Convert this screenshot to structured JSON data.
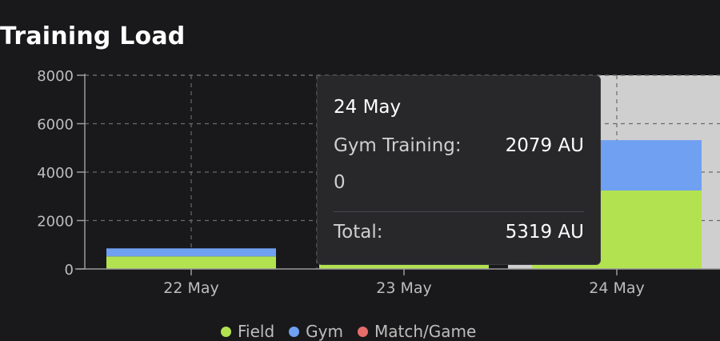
{
  "title": "Training Load",
  "chart_data": {
    "type": "bar",
    "stacked": true,
    "categories": [
      "22 May",
      "23 May",
      "24 May"
    ],
    "series": [
      {
        "name": "Field",
        "color": "#b3e250",
        "values": [
          520,
          250,
          3240
        ]
      },
      {
        "name": "Gym",
        "color": "#6fa0f2",
        "values": [
          330,
          0,
          2079
        ]
      },
      {
        "name": "Match/Game",
        "color": "#e56e6a",
        "values": [
          0,
          0,
          0
        ]
      }
    ],
    "y_ticks": [
      "0",
      "2000",
      "4000",
      "6000",
      "8000"
    ],
    "ylim": [
      0,
      8000
    ],
    "grid": true,
    "legend": "bottom",
    "highlighted_category": "24 May"
  },
  "tooltip": {
    "date": "24 May",
    "row1_label": "Gym Training:",
    "row1_value": "2079 AU",
    "row1_extra": "0",
    "total_label": "Total:",
    "total_value": "5319 AU"
  }
}
